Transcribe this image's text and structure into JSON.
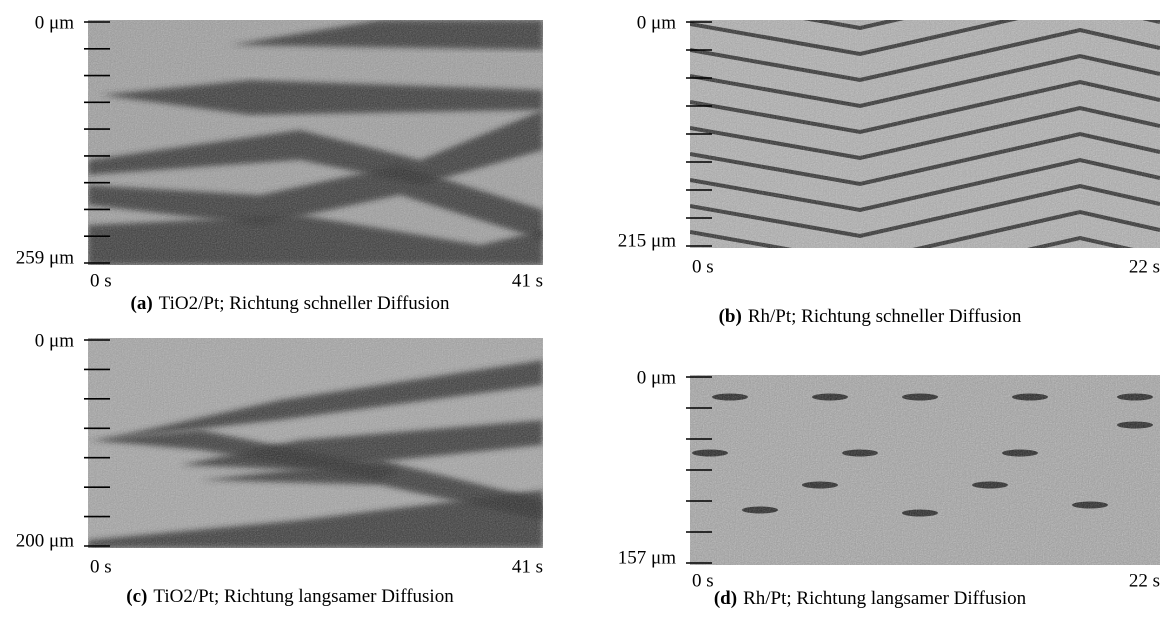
{
  "panels": [
    {
      "y_top": "0 μm",
      "y_bottom": "259 μm",
      "x_left": "0 s",
      "x_right": "41 s",
      "caption_label": "(a)",
      "caption_text": "TiO2/Pt; Richtung schneller Diffusion"
    },
    {
      "y_top": "0 μm",
      "y_bottom": "215 μm",
      "x_left": "0 s",
      "x_right": "22 s",
      "caption_label": "(b)",
      "caption_text": "Rh/Pt; Richtung schneller Diffusion"
    },
    {
      "y_top": "0 μm",
      "y_bottom": "200 μm",
      "x_left": "0 s",
      "x_right": "41 s",
      "caption_label": "(c)",
      "caption_text": "TiO2/Pt; Richtung langsamer Diffusion"
    },
    {
      "y_top": "0 μm",
      "y_bottom": "157 μm",
      "x_left": "0 s",
      "x_right": "22 s",
      "caption_label": "(d)",
      "caption_text": "Rh/Pt; Richtung langsamer Diffusion"
    }
  ]
}
